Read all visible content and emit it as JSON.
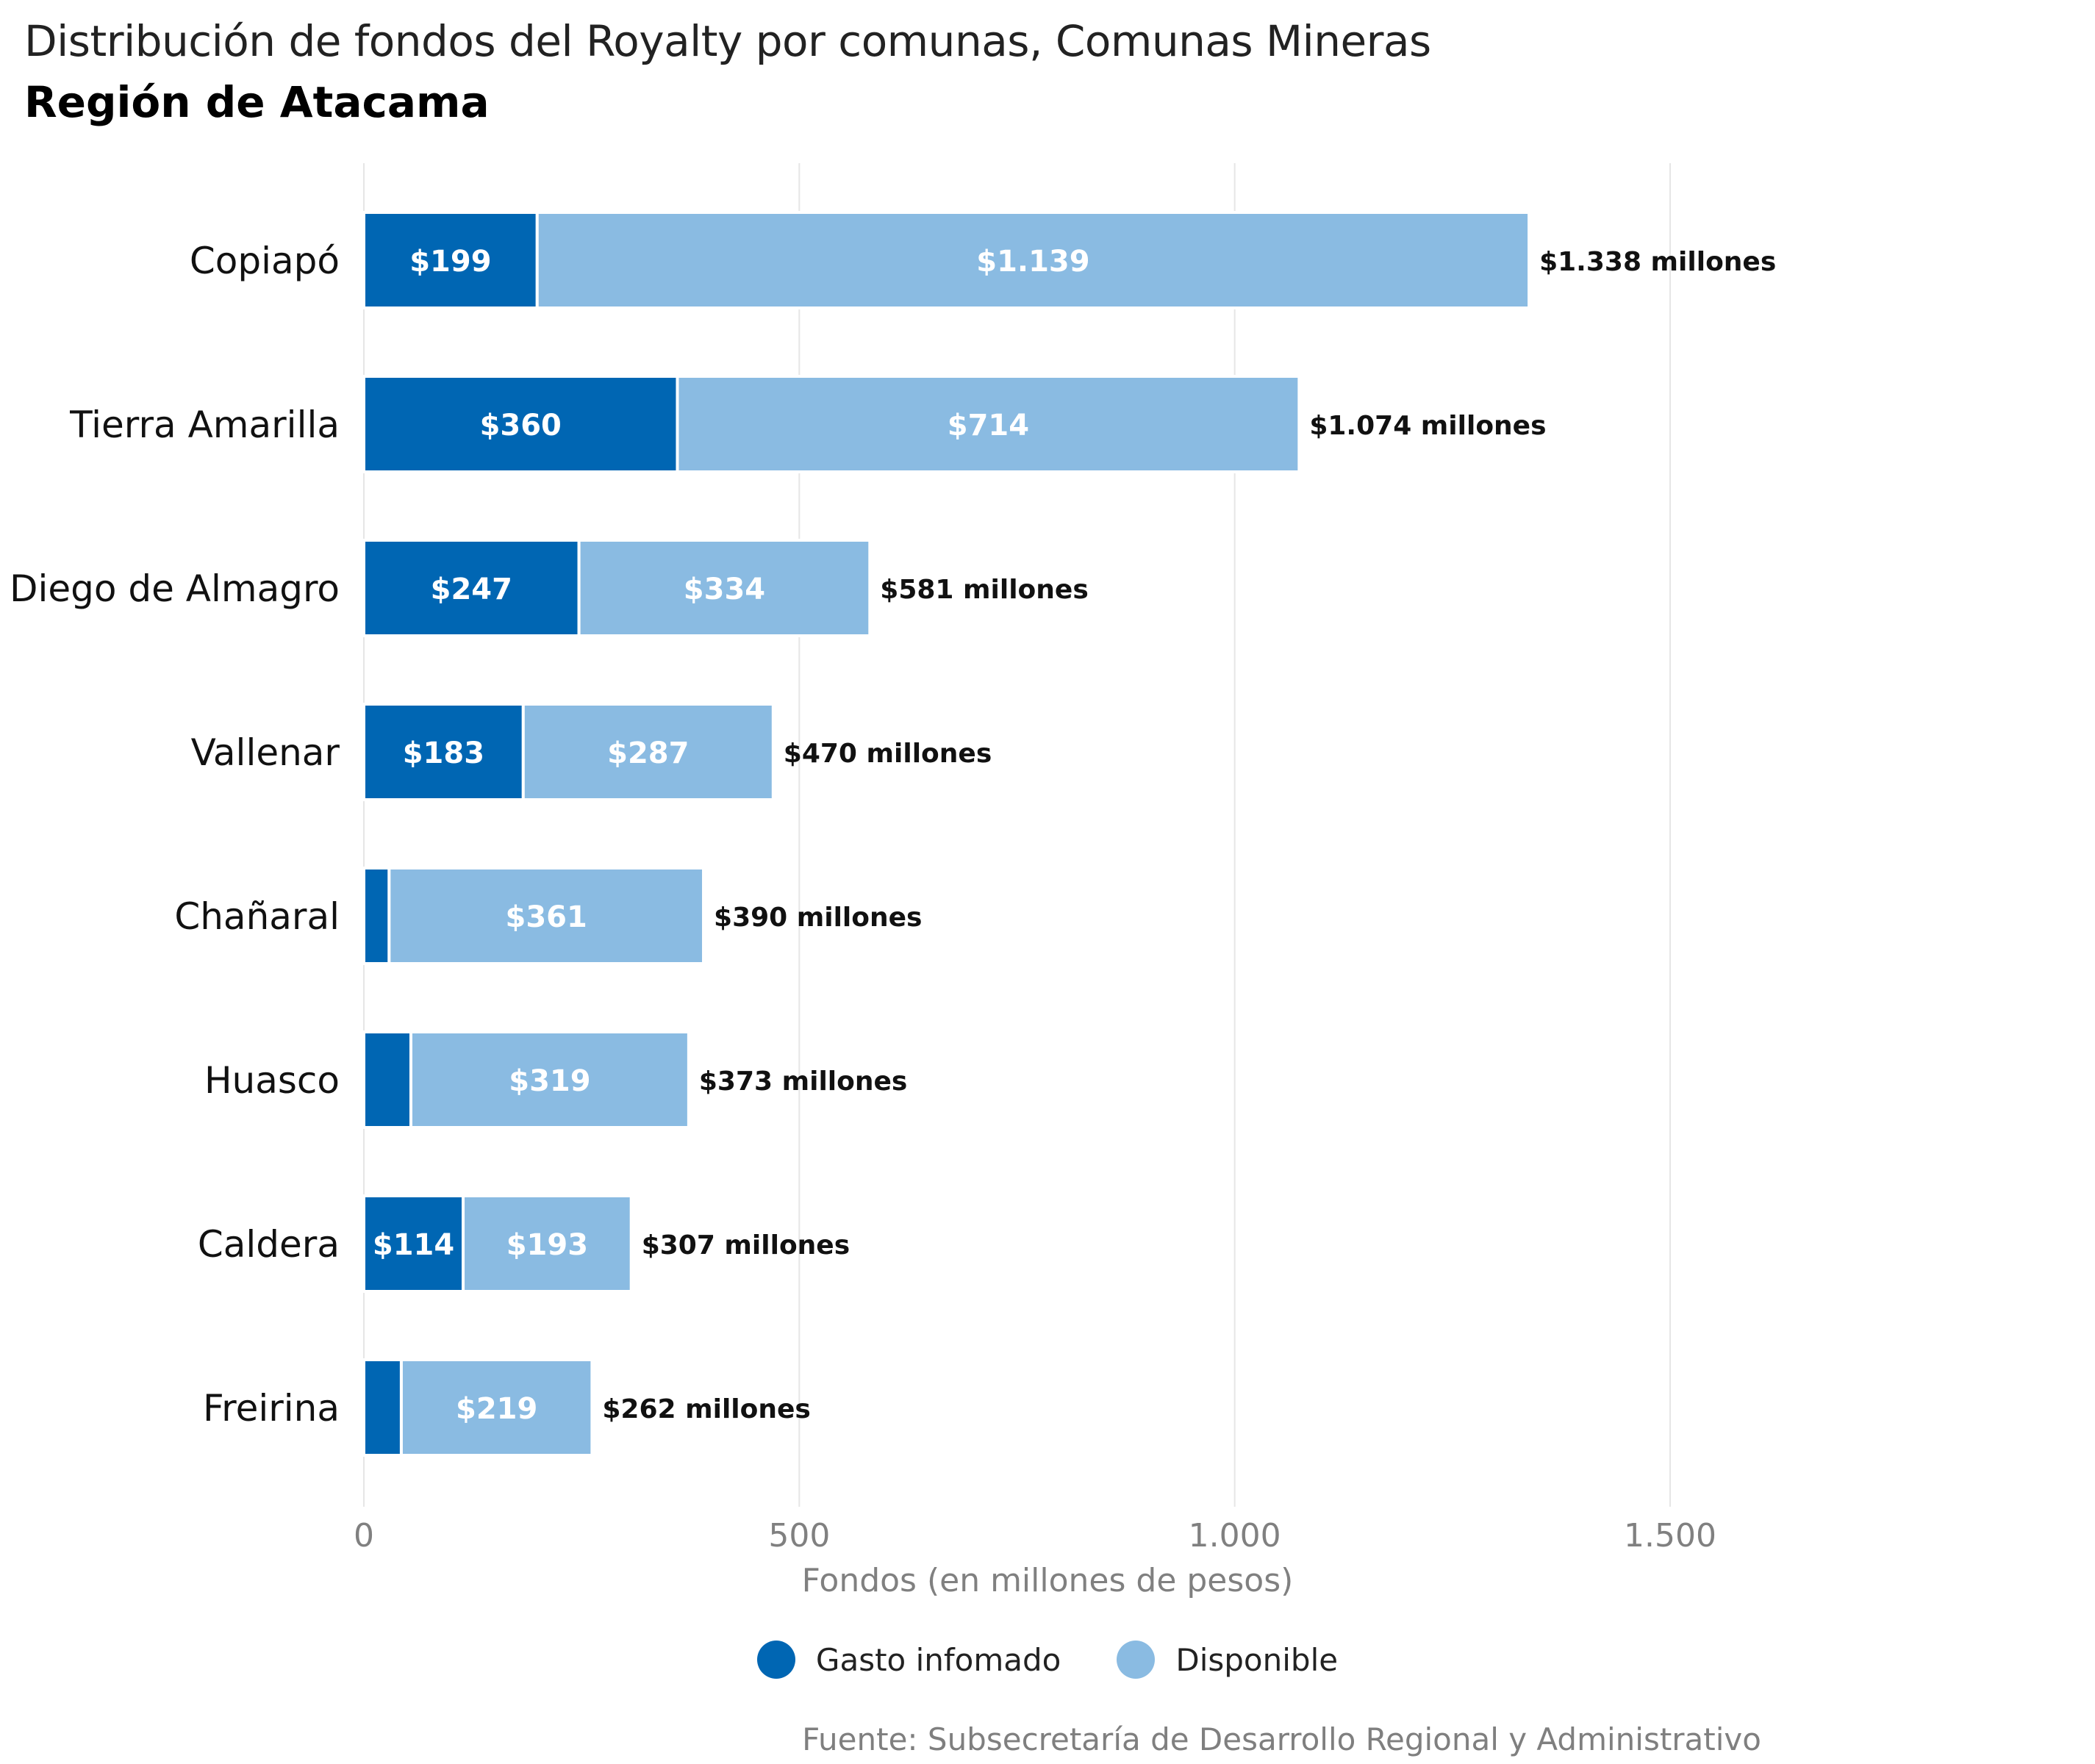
{
  "title": "Distribución de fondos del Royalty por comunas, Comunas Mineras",
  "subtitle": "Región de Atacama",
  "source": "Fuente: Subsecretaría de Desarrollo Regional y Administrativo",
  "colors": {
    "gasto": "#0066b3",
    "disponible": "#8abbe2",
    "grid": "#e6e6e6",
    "axis_text": "#808080"
  },
  "chart_data": {
    "type": "bar",
    "orientation": "horizontal",
    "stacked": true,
    "categories": [
      "Copiapó",
      "Tierra Amarilla",
      "Diego de Almagro",
      "Vallenar",
      "Chañaral",
      "Huasco",
      "Caldera",
      "Freirina"
    ],
    "series": [
      {
        "name": "Gasto infomado",
        "values": [
          199,
          360,
          247,
          183,
          29,
          54,
          114,
          43
        ],
        "labels": [
          "$199",
          "$360",
          "$247",
          "$183",
          "",
          "",
          "$114",
          ""
        ]
      },
      {
        "name": "Disponible",
        "values": [
          1139,
          714,
          334,
          287,
          361,
          319,
          193,
          219
        ],
        "labels": [
          "$1.139",
          "$714",
          "$334",
          "$287",
          "$361",
          "$319",
          "$193",
          "$219"
        ]
      }
    ],
    "totals": [
      1338,
      1074,
      581,
      470,
      390,
      373,
      307,
      262
    ],
    "total_labels": [
      "$1.338 millones",
      "$1.074 millones",
      "$581 millones",
      "$470 millones",
      "$390 millones",
      "$373 millones",
      "$307 millones",
      "$262 millones"
    ],
    "xlabel": "Fondos (en millones de pesos)",
    "xlim": [
      0,
      1500
    ],
    "xticks": [
      0,
      500,
      1000,
      1500
    ],
    "xtick_labels": [
      "0",
      "500",
      "1.000",
      "1.500"
    ],
    "grid": true,
    "legend_position": "bottom"
  }
}
